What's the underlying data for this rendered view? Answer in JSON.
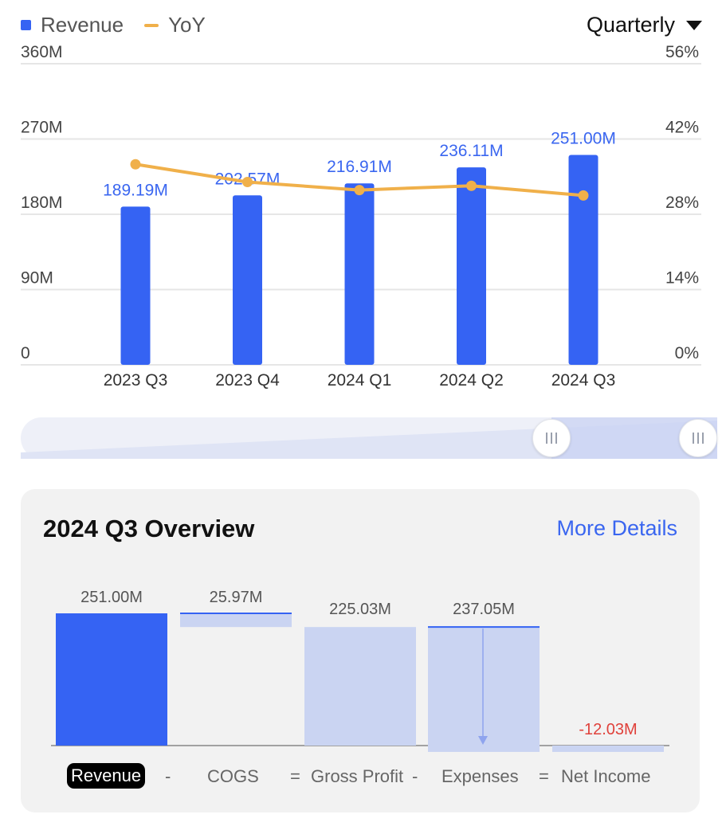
{
  "legend": {
    "revenue_label": "Revenue",
    "yoy_label": "YoY"
  },
  "period_select": {
    "value": "Quarterly"
  },
  "colors": {
    "bar": "#3563f3",
    "line": "#f0b04a",
    "value_label": "#3a66f0",
    "light_bar": "#cad4f2",
    "negative": "#e0413b",
    "grid": "#e6e6e6"
  },
  "chart_data": [
    {
      "type": "bar",
      "categories": [
        "2023 Q3",
        "2023 Q4",
        "2024 Q1",
        "2024 Q2",
        "2024 Q3"
      ],
      "series": [
        {
          "name": "Revenue",
          "values": [
            189.19,
            202.57,
            216.91,
            236.11,
            251.0
          ],
          "labels": [
            "189.19M",
            "202.57M",
            "216.91M",
            "236.11M",
            "251.00M"
          ],
          "axis": "left"
        },
        {
          "name": "YoY",
          "type": "line",
          "values": [
            37.3,
            34.0,
            32.5,
            33.3,
            31.5
          ],
          "axis": "right"
        }
      ],
      "y_left": {
        "ticks": [
          "360M",
          "270M",
          "180M",
          "90M",
          "0"
        ],
        "ylim": [
          0,
          360
        ]
      },
      "y_right": {
        "ticks": [
          "56%",
          "42%",
          "28%",
          "14%",
          "0%"
        ],
        "ylim": [
          0,
          56
        ]
      },
      "grid": true,
      "legend": "top-left"
    },
    {
      "type": "waterfall",
      "title": "2024 Q3 Overview",
      "categories": [
        "Revenue",
        "COGS",
        "Gross Profit",
        "Expenses",
        "Net Income"
      ],
      "values": [
        251.0,
        -25.97,
        225.03,
        -237.05,
        -12.03
      ],
      "labels": [
        "251.00M",
        "25.97M",
        "225.03M",
        "237.05M",
        "-12.03M"
      ]
    }
  ],
  "overview": {
    "title": "2024 Q3 Overview",
    "more_details": "More Details",
    "formula": [
      "Revenue",
      "-",
      "COGS",
      "=",
      "Gross Profit",
      "-",
      "Expenses",
      "=",
      "Net Income"
    ]
  }
}
